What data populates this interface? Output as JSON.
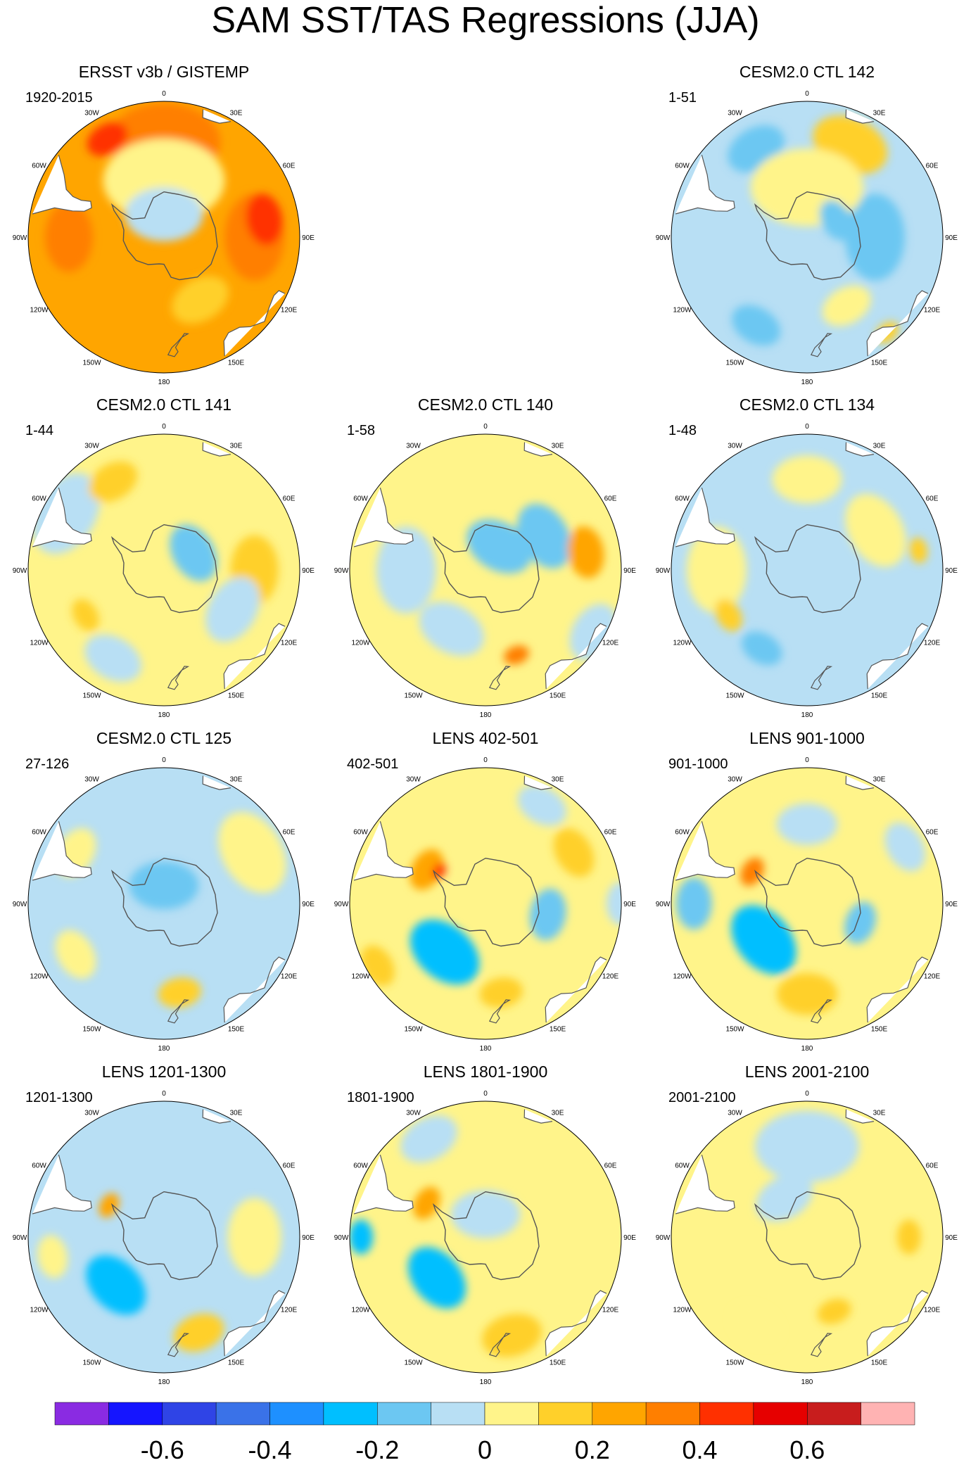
{
  "chart_data": {
    "type": "heatmap",
    "projection": "south-polar-stereographic",
    "title": "SAM SST/TAS Regressions (JJA)",
    "longitude_labels": [
      "0",
      "30E",
      "60E",
      "90E",
      "120E",
      "150E",
      "180",
      "150W",
      "120W",
      "90W",
      "60W",
      "30W"
    ],
    "panels": [
      {
        "title": "ERSST v3b / GISTEMP",
        "period": "1920-2015",
        "background_value": 0.25,
        "blobs": [
          {
            "lon": 0,
            "lat": -48,
            "value": 0.3,
            "size": 1.3
          },
          {
            "lon": 90,
            "lat": -50,
            "value": 0.35,
            "size": 1.0
          },
          {
            "lon": 80,
            "lat": -45,
            "value": 0.4,
            "size": 0.6
          },
          {
            "lon": -90,
            "lat": -48,
            "value": 0.35,
            "size": 0.8
          },
          {
            "lon": -30,
            "lat": -40,
            "value": 0.4,
            "size": 0.5
          },
          {
            "lon": 0,
            "lat": -65,
            "value": 0.05,
            "size": 1.4
          },
          {
            "lon": 0,
            "lat": -80,
            "value": -0.05,
            "size": 0.9
          },
          {
            "lon": 150,
            "lat": -58,
            "value": 0.1,
            "size": 0.7
          }
        ]
      },
      null,
      {
        "title": "CESM2.0 CTL 142",
        "period": "1-51",
        "background_value": -0.05,
        "blobs": [
          {
            "lon": 90,
            "lat": -60,
            "value": -0.2,
            "size": 1.0
          },
          {
            "lon": -30,
            "lat": -45,
            "value": -0.15,
            "size": 0.7
          },
          {
            "lon": 25,
            "lat": -45,
            "value": 0.1,
            "size": 0.9
          },
          {
            "lon": 0,
            "lat": -68,
            "value": 0.05,
            "size": 1.3
          },
          {
            "lon": 150,
            "lat": -55,
            "value": 0.08,
            "size": 0.6
          },
          {
            "lon": -150,
            "lat": -45,
            "value": -0.15,
            "size": 0.6
          },
          {
            "lon": 60,
            "lat": -75,
            "value": -0.15,
            "size": 0.5
          },
          {
            "lon": 140,
            "lat": -35,
            "value": 0.15,
            "size": 0.3
          }
        ]
      },
      {
        "title": "CESM2.0 CTL 141",
        "period": "1-44",
        "background_value": 0.05,
        "blobs": [
          {
            "lon": -60,
            "lat": -40,
            "value": -0.05,
            "size": 1.0
          },
          {
            "lon": -150,
            "lat": -45,
            "value": -0.08,
            "size": 0.7
          },
          {
            "lon": -30,
            "lat": -45,
            "value": 0.15,
            "size": 0.6
          },
          {
            "lon": 90,
            "lat": -50,
            "value": 0.15,
            "size": 0.8
          },
          {
            "lon": 60,
            "lat": -75,
            "value": -0.15,
            "size": 0.7
          },
          {
            "lon": 120,
            "lat": -55,
            "value": -0.05,
            "size": 0.8
          },
          {
            "lon": -120,
            "lat": -50,
            "value": 0.12,
            "size": 0.4
          }
        ]
      },
      {
        "title": "CESM2.0 CTL 140",
        "period": "1-58",
        "background_value": 0.05,
        "blobs": [
          {
            "lon": 60,
            "lat": -60,
            "value": -0.15,
            "size": 0.8
          },
          {
            "lon": 30,
            "lat": -78,
            "value": -0.15,
            "size": 0.8
          },
          {
            "lon": 80,
            "lat": -45,
            "value": 0.2,
            "size": 0.6
          },
          {
            "lon": -90,
            "lat": -55,
            "value": -0.05,
            "size": 1.0
          },
          {
            "lon": 160,
            "lat": -50,
            "value": 0.3,
            "size": 0.3
          },
          {
            "lon": -150,
            "lat": -60,
            "value": -0.05,
            "size": 0.8
          },
          {
            "lon": 120,
            "lat": -35,
            "value": -0.05,
            "size": 0.7
          }
        ]
      },
      {
        "title": "CESM2.0 CTL 134",
        "period": "1-48",
        "background_value": -0.05,
        "blobs": [
          {
            "lon": -90,
            "lat": -50,
            "value": 0.08,
            "size": 1.0
          },
          {
            "lon": 60,
            "lat": -55,
            "value": 0.08,
            "size": 0.9
          },
          {
            "lon": -150,
            "lat": -50,
            "value": -0.15,
            "size": 0.5
          },
          {
            "lon": -120,
            "lat": -50,
            "value": 0.15,
            "size": 0.4
          },
          {
            "lon": 80,
            "lat": -40,
            "value": 0.15,
            "size": 0.3
          },
          {
            "lon": 0,
            "lat": -50,
            "value": 0.05,
            "size": 0.8
          }
        ]
      },
      {
        "title": "CESM2.0 CTL 125",
        "period": "27-126",
        "background_value": -0.05,
        "blobs": [
          {
            "lon": 0,
            "lat": -82,
            "value": -0.15,
            "size": 0.8
          },
          {
            "lon": 60,
            "lat": -45,
            "value": 0.08,
            "size": 1.0
          },
          {
            "lon": -60,
            "lat": -45,
            "value": 0.08,
            "size": 0.6
          },
          {
            "lon": 170,
            "lat": -50,
            "value": 0.15,
            "size": 0.5
          },
          {
            "lon": -120,
            "lat": -45,
            "value": 0.06,
            "size": 0.6
          }
        ]
      },
      {
        "title": "LENS 402-501",
        "period": "402-501",
        "background_value": 0.05,
        "blobs": [
          {
            "lon": -140,
            "lat": -62,
            "value": -0.3,
            "size": 0.9
          },
          {
            "lon": 100,
            "lat": -62,
            "value": -0.2,
            "size": 0.6
          },
          {
            "lon": 60,
            "lat": -45,
            "value": 0.15,
            "size": 0.6
          },
          {
            "lon": -60,
            "lat": -60,
            "value": 0.25,
            "size": 0.5
          },
          {
            "lon": -55,
            "lat": -65,
            "value": 0.4,
            "size": 0.2
          },
          {
            "lon": 170,
            "lat": -50,
            "value": 0.15,
            "size": 0.5
          },
          {
            "lon": -120,
            "lat": -35,
            "value": 0.12,
            "size": 0.5
          },
          {
            "lon": 30,
            "lat": -40,
            "value": -0.05,
            "size": 0.6
          },
          {
            "lon": 90,
            "lat": -30,
            "value": -0.1,
            "size": 0.5
          }
        ]
      },
      {
        "title": "LENS 901-1000",
        "period": "901-1000",
        "background_value": 0.05,
        "blobs": [
          {
            "lon": -130,
            "lat": -65,
            "value": -0.3,
            "size": 0.9
          },
          {
            "lon": -90,
            "lat": -40,
            "value": -0.15,
            "size": 0.6
          },
          {
            "lon": 180,
            "lat": -50,
            "value": 0.15,
            "size": 0.7
          },
          {
            "lon": -60,
            "lat": -62,
            "value": 0.3,
            "size": 0.35
          },
          {
            "lon": 110,
            "lat": -65,
            "value": -0.15,
            "size": 0.5
          },
          {
            "lon": 0,
            "lat": -55,
            "value": -0.05,
            "size": 0.7
          },
          {
            "lon": 60,
            "lat": -40,
            "value": -0.05,
            "size": 0.6
          }
        ]
      },
      {
        "title": "LENS 1201-1300",
        "period": "1201-1300",
        "background_value": -0.05,
        "blobs": [
          {
            "lon": -135,
            "lat": -60,
            "value": -0.25,
            "size": 0.8
          },
          {
            "lon": -60,
            "lat": -62,
            "value": 0.25,
            "size": 0.3
          },
          {
            "lon": 90,
            "lat": -50,
            "value": 0.08,
            "size": 0.9
          },
          {
            "lon": 160,
            "lat": -45,
            "value": 0.12,
            "size": 0.6
          },
          {
            "lon": -100,
            "lat": -40,
            "value": 0.08,
            "size": 0.5
          }
        ]
      },
      {
        "title": "LENS 1801-1900",
        "period": "1801-1900",
        "background_value": 0.05,
        "blobs": [
          {
            "lon": -130,
            "lat": -62,
            "value": -0.25,
            "size": 0.8
          },
          {
            "lon": -90,
            "lat": -35,
            "value": -0.3,
            "size": 0.4
          },
          {
            "lon": -60,
            "lat": -60,
            "value": 0.2,
            "size": 0.4
          },
          {
            "lon": 165,
            "lat": -45,
            "value": 0.15,
            "size": 0.7
          },
          {
            "lon": 0,
            "lat": -80,
            "value": -0.1,
            "size": 0.8
          },
          {
            "lon": -30,
            "lat": -40,
            "value": -0.05,
            "size": 0.7
          }
        ]
      },
      {
        "title": "LENS 2001-2100",
        "period": "2001-2100",
        "background_value": 0.05,
        "blobs": [
          {
            "lon": 0,
            "lat": -50,
            "value": -0.05,
            "size": 1.2
          },
          {
            "lon": 90,
            "lat": -45,
            "value": 0.15,
            "size": 0.4
          },
          {
            "lon": 160,
            "lat": -55,
            "value": 0.12,
            "size": 0.4
          },
          {
            "lon": -150,
            "lat": -45,
            "value": 0.06,
            "size": 0.6
          },
          {
            "lon": -30,
            "lat": -70,
            "value": -0.08,
            "size": 0.7
          }
        ]
      }
    ],
    "colorbar": {
      "colors": [
        "#8a2be2",
        "#1515ff",
        "#2f44e6",
        "#3a72e8",
        "#1e90ff",
        "#00bfff",
        "#6cc7f2",
        "#b8dff4",
        "#fff48a",
        "#ffd02a",
        "#ffa500",
        "#ff7f00",
        "#ff3000",
        "#e60000",
        "#c81d1d",
        "#ffb3b3"
      ],
      "levels": [
        -0.7,
        -0.6,
        -0.5,
        -0.4,
        -0.3,
        -0.2,
        -0.1,
        0,
        0.1,
        0.2,
        0.3,
        0.4,
        0.5,
        0.6,
        0.7
      ],
      "tick_labels": [
        "-0.6",
        "-0.4",
        "-0.2",
        "0",
        "0.2",
        "0.4",
        "0.6"
      ],
      "tick_values": [
        -0.6,
        -0.4,
        -0.2,
        0,
        0.2,
        0.4,
        0.6
      ]
    }
  }
}
